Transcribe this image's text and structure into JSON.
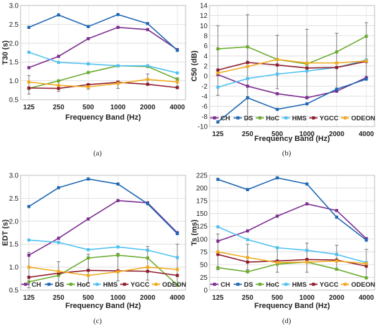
{
  "colors": {
    "CH": "#7b2c8f",
    "DS": "#1f67b2",
    "HoC": "#6aab2e",
    "HMS": "#4fc1f0",
    "YGCC": "#8e1c2c",
    "ODEON": "#f0aa1e"
  },
  "chart_data": [
    {
      "type": "line",
      "caption": "(a)",
      "ylabel": "T30 (s)",
      "xlabel": "Frequency Band (Hz)",
      "categories": [
        "125",
        "250",
        "500",
        "1000",
        "2000",
        "4000"
      ],
      "ylim": [
        0.5,
        3.0
      ],
      "yticks": [
        "0.5",
        "1.0",
        "1.5",
        "2.0",
        "2.5",
        "3.0"
      ],
      "ytick_values": [
        0.5,
        1.0,
        1.5,
        2.0,
        2.5,
        3.0
      ],
      "legend": "none",
      "series": [
        {
          "name": "CH",
          "values": [
            1.35,
            1.65,
            2.12,
            2.42,
            2.36,
            1.83
          ]
        },
        {
          "name": "DS",
          "values": [
            2.42,
            2.75,
            2.44,
            2.76,
            2.52,
            1.81
          ]
        },
        {
          "name": "HoC",
          "values": [
            0.8,
            1.0,
            1.22,
            1.4,
            1.38,
            1.04
          ]
        },
        {
          "name": "HMS",
          "values": [
            1.76,
            1.49,
            1.45,
            1.4,
            1.4,
            1.21
          ]
        },
        {
          "name": "YGCC",
          "values": [
            0.81,
            0.8,
            0.9,
            0.96,
            0.91,
            0.82
          ]
        },
        {
          "name": "ODEON",
          "values": [
            0.97,
            0.88,
            0.84,
            0.93,
            1.04,
            0.97
          ]
        }
      ],
      "error_bar_series": "ODEON",
      "error_low": [
        0.65,
        0.72,
        0.78,
        0.8,
        0.88,
        0.86
      ],
      "error_high": [
        1.14,
        1.0,
        0.9,
        1.0,
        1.18,
        1.08
      ]
    },
    {
      "type": "line",
      "caption": "(b)",
      "ylabel": "C50 (dB)",
      "xlabel": "Frequency Band (Hz)",
      "categories": [
        "125",
        "250",
        "500",
        "1000",
        "2000",
        "4000"
      ],
      "ylim": [
        -10,
        14
      ],
      "yticks": [
        "-10",
        "-8",
        "-6",
        "-4",
        "-2",
        "0",
        "2",
        "4",
        "6",
        "8",
        "10",
        "12",
        "14"
      ],
      "ytick_values": [
        -10,
        -8,
        -6,
        -4,
        -2,
        0,
        2,
        4,
        6,
        8,
        10,
        12,
        14
      ],
      "legend": "bottom",
      "series": [
        {
          "name": "CH",
          "values": [
            0.3,
            -2.0,
            -3.5,
            -4.3,
            -3.0,
            -0.3
          ]
        },
        {
          "name": "DS",
          "values": [
            -9.1,
            -4.3,
            -6.6,
            -5.5,
            -2.6,
            -0.6
          ]
        },
        {
          "name": "HoC",
          "values": [
            5.4,
            5.8,
            3.3,
            2.4,
            4.8,
            7.9
          ]
        },
        {
          "name": "HMS",
          "values": [
            -2.2,
            -0.5,
            0.4,
            1.0,
            1.7,
            3.2
          ]
        },
        {
          "name": "YGCC",
          "values": [
            1.2,
            2.7,
            2.2,
            1.6,
            1.7,
            2.9
          ]
        },
        {
          "name": "ODEON",
          "values": [
            0.6,
            1.9,
            3.3,
            2.6,
            2.6,
            3.0
          ]
        }
      ],
      "error_bar_series": "ODEON",
      "error_low": [
        -3.8,
        -8.5,
        -2.5,
        -4.0,
        -3.0,
        -0.4
      ],
      "error_high": [
        10.0,
        12.2,
        8.1,
        9.3,
        8.5,
        10.6
      ]
    },
    {
      "type": "line",
      "caption": "(c)",
      "ylabel": "EDT (s)",
      "xlabel": "Frequency Band (Hz)",
      "categories": [
        "125",
        "250",
        "500",
        "1000",
        "2000",
        "4000"
      ],
      "ylim": [
        0.5,
        3.0
      ],
      "yticks": [
        "0.5",
        "1.0",
        "1.5",
        "2.0",
        "2.5",
        "3.0"
      ],
      "ytick_values": [
        0.5,
        1.0,
        1.5,
        2.0,
        2.5,
        3.0
      ],
      "legend": "bottom",
      "series": [
        {
          "name": "CH",
          "values": [
            1.26,
            1.63,
            2.05,
            2.45,
            2.4,
            1.75
          ]
        },
        {
          "name": "DS",
          "values": [
            2.32,
            2.73,
            2.92,
            2.81,
            2.38,
            1.73
          ]
        },
        {
          "name": "HoC",
          "values": [
            0.68,
            0.82,
            1.2,
            1.26,
            1.2,
            0.61
          ]
        },
        {
          "name": "HMS",
          "values": [
            1.59,
            1.54,
            1.38,
            1.44,
            1.37,
            1.21
          ]
        },
        {
          "name": "YGCC",
          "values": [
            0.78,
            0.87,
            0.93,
            0.92,
            0.91,
            0.82
          ]
        },
        {
          "name": "ODEON",
          "values": [
            1.0,
            0.91,
            0.82,
            0.9,
            1.0,
            0.95
          ]
        }
      ],
      "error_bar_series": "ODEON",
      "error_low": [
        0.55,
        0.6,
        0.65,
        0.7,
        0.72,
        0.6
      ],
      "error_high": [
        1.32,
        1.12,
        1.28,
        1.3,
        1.45,
        1.5
      ]
    },
    {
      "type": "line",
      "caption": "(d)",
      "ylabel": "Ts (ms)",
      "xlabel": "Frequency Band (Hz)",
      "categories": [
        "125",
        "250",
        "500",
        "1000",
        "2000",
        "4000"
      ],
      "ylim": [
        0,
        225
      ],
      "yticks": [
        "0",
        "25",
        "50",
        "75",
        "100",
        "125",
        "150",
        "175",
        "200",
        "225"
      ],
      "ytick_values": [
        0,
        25,
        50,
        75,
        100,
        125,
        150,
        175,
        200,
        225
      ],
      "legend": "bottom",
      "series": [
        {
          "name": "CH",
          "values": [
            96,
            116,
            145,
            169,
            156,
            101
          ]
        },
        {
          "name": "DS",
          "values": [
            217,
            197,
            220,
            208,
            143,
            98
          ]
        },
        {
          "name": "HoC",
          "values": [
            44,
            36,
            51,
            55,
            41,
            24
          ]
        },
        {
          "name": "HMS",
          "values": [
            124,
            99,
            83,
            78,
            70,
            54
          ]
        },
        {
          "name": "YGCC",
          "values": [
            70,
            55,
            57,
            60,
            59,
            47
          ]
        },
        {
          "name": "ODEON",
          "values": [
            75,
            64,
            54,
            55,
            57,
            52
          ]
        }
      ],
      "error_bar_series": "ODEON",
      "error_low": [
        40,
        40,
        35,
        35,
        40,
        25
      ],
      "error_high": [
        110,
        90,
        85,
        92,
        88,
        80
      ]
    }
  ]
}
